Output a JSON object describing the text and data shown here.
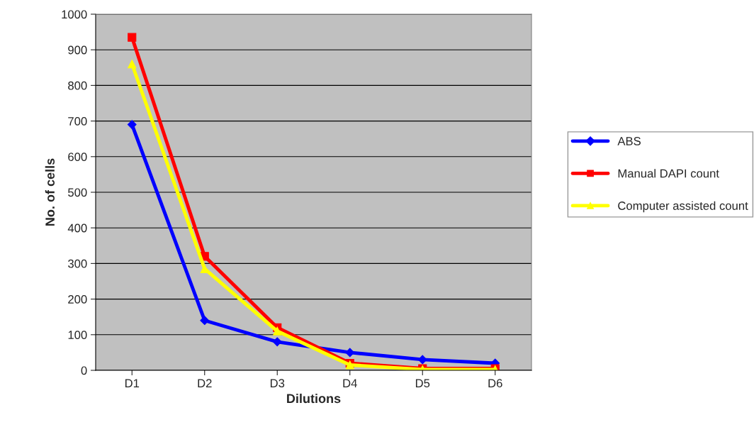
{
  "chart_data": {
    "type": "line",
    "xlabel": "Dilutions",
    "ylabel": "No. of cells",
    "categories": [
      "D1",
      "D2",
      "D3",
      "D4",
      "D5",
      "D6"
    ],
    "series": [
      {
        "name": "ABS",
        "color": "#0000ff",
        "marker": "diamond",
        "values": [
          690,
          140,
          80,
          50,
          30,
          20
        ]
      },
      {
        "name": "Manual DAPI count",
        "color": "#ff0000",
        "marker": "square",
        "values": [
          935,
          320,
          120,
          20,
          5,
          5
        ]
      },
      {
        "name": "Computer assisted count",
        "color": "#ffff00",
        "marker": "triangle",
        "values": [
          860,
          285,
          110,
          15,
          2,
          2
        ]
      }
    ],
    "ylim": [
      0,
      1000
    ],
    "yticks": [
      0,
      100,
      200,
      300,
      400,
      500,
      600,
      700,
      800,
      900,
      1000
    ],
    "grid": "y",
    "legend": "right",
    "line_style": "solid"
  }
}
